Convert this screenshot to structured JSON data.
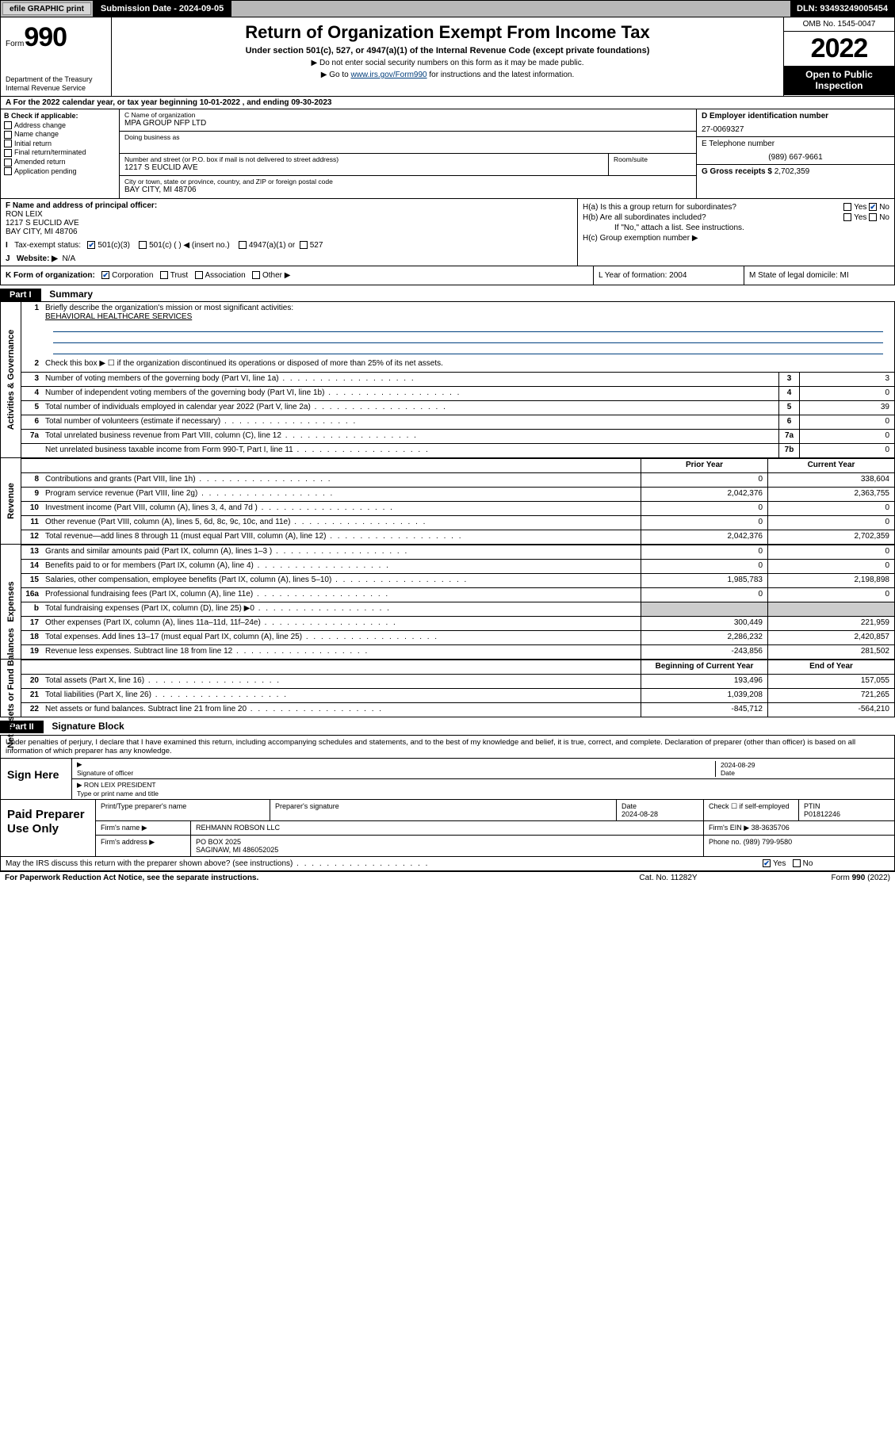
{
  "topbar": {
    "efile": "efile GRAPHIC print",
    "submission": "Submission Date - 2024-09-05",
    "dln": "DLN: 93493249005454"
  },
  "header": {
    "form_label": "Form",
    "form_number": "990",
    "dept": "Department of the Treasury\nInternal Revenue Service",
    "title": "Return of Organization Exempt From Income Tax",
    "sub1": "Under section 501(c), 527, or 4947(a)(1) of the Internal Revenue Code (except private foundations)",
    "sub2": "Do not enter social security numbers on this form as it may be made public.",
    "sub3_pre": "Go to ",
    "sub3_link": "www.irs.gov/Form990",
    "sub3_post": " for instructions and the latest information.",
    "omb": "OMB No. 1545-0047",
    "year": "2022",
    "open": "Open to Public Inspection"
  },
  "rowA": "A For the 2022 calendar year, or tax year beginning 10-01-2022    , and ending 09-30-2023",
  "checkboxes": {
    "title": "B Check if applicable:",
    "items": [
      "Address change",
      "Name change",
      "Initial return",
      "Final return/terminated",
      "Amended return",
      "Application pending"
    ]
  },
  "ident": {
    "c_label": "C Name of organization",
    "c_val": "MPA GROUP NFP LTD",
    "dba_label": "Doing business as",
    "dba_val": "",
    "addr_label": "Number and street (or P.O. box if mail is not delivered to street address)",
    "addr_val": "1217 S EUCLID AVE",
    "room_label": "Room/suite",
    "city_label": "City or town, state or province, country, and ZIP or foreign postal code",
    "city_val": "BAY CITY, MI  48706",
    "d_label": "D Employer identification number",
    "d_val": "27-0069327",
    "e_label": "E Telephone number",
    "e_val": "(989) 667-9661",
    "g_label": "G Gross receipts $",
    "g_val": "2,702,359"
  },
  "fh": {
    "f_label": "F  Name and address of principal officer:",
    "f_name": "RON LEIX",
    "f_addr1": "1217 S EUCLID AVE",
    "f_addr2": "BAY CITY, MI  48706",
    "i_label": "Tax-exempt status:",
    "i_501c3": "501(c)(3)",
    "i_501c": "501(c) (  ) ◀ (insert no.)",
    "i_4947": "4947(a)(1) or",
    "i_527": "527",
    "j_label": "Website: ▶",
    "j_val": "N/A",
    "ha": "H(a)  Is this a group return for subordinates?",
    "hb": "H(b)  Are all subordinates included?",
    "hb_note": "If \"No,\" attach a list. See instructions.",
    "hc": "H(c)  Group exemption number ▶"
  },
  "klm": {
    "k": "K Form of organization:",
    "k_corp": "Corporation",
    "k_trust": "Trust",
    "k_assoc": "Association",
    "k_other": "Other ▶",
    "l": "L Year of formation: 2004",
    "m": "M State of legal domicile: MI"
  },
  "part1": {
    "hdr": "Part I",
    "title": "Summary",
    "l1": "Briefly describe the organization's mission or most significant activities:",
    "l1_val": "BEHAVIORAL HEALTHCARE SERVICES",
    "l2": "Check this box ▶ ☐  if the organization discontinued its operations or disposed of more than 25% of its net assets.",
    "rows_top": [
      {
        "n": "3",
        "d": "Number of voting members of the governing body (Part VI, line 1a)",
        "box": "3",
        "val": "3"
      },
      {
        "n": "4",
        "d": "Number of independent voting members of the governing body (Part VI, line 1b)",
        "box": "4",
        "val": "0"
      },
      {
        "n": "5",
        "d": "Total number of individuals employed in calendar year 2022 (Part V, line 2a)",
        "box": "5",
        "val": "39"
      },
      {
        "n": "6",
        "d": "Total number of volunteers (estimate if necessary)",
        "box": "6",
        "val": "0"
      },
      {
        "n": "7a",
        "d": "Total unrelated business revenue from Part VIII, column (C), line 12",
        "box": "7a",
        "val": "0"
      },
      {
        "n": "",
        "d": "Net unrelated business taxable income from Form 990-T, Part I, line 11",
        "box": "7b",
        "val": "0"
      }
    ],
    "col_headers": {
      "prior": "Prior Year",
      "current": "Current Year"
    },
    "revenue": [
      {
        "n": "8",
        "d": "Contributions and grants (Part VIII, line 1h)",
        "p": "0",
        "c": "338,604"
      },
      {
        "n": "9",
        "d": "Program service revenue (Part VIII, line 2g)",
        "p": "2,042,376",
        "c": "2,363,755"
      },
      {
        "n": "10",
        "d": "Investment income (Part VIII, column (A), lines 3, 4, and 7d )",
        "p": "0",
        "c": "0"
      },
      {
        "n": "11",
        "d": "Other revenue (Part VIII, column (A), lines 5, 6d, 8c, 9c, 10c, and 11e)",
        "p": "0",
        "c": "0"
      },
      {
        "n": "12",
        "d": "Total revenue—add lines 8 through 11 (must equal Part VIII, column (A), line 12)",
        "p": "2,042,376",
        "c": "2,702,359"
      }
    ],
    "expenses": [
      {
        "n": "13",
        "d": "Grants and similar amounts paid (Part IX, column (A), lines 1–3 )",
        "p": "0",
        "c": "0"
      },
      {
        "n": "14",
        "d": "Benefits paid to or for members (Part IX, column (A), line 4)",
        "p": "0",
        "c": "0"
      },
      {
        "n": "15",
        "d": "Salaries, other compensation, employee benefits (Part IX, column (A), lines 5–10)",
        "p": "1,985,783",
        "c": "2,198,898"
      },
      {
        "n": "16a",
        "d": "Professional fundraising fees (Part IX, column (A), line 11e)",
        "p": "0",
        "c": "0"
      },
      {
        "n": "b",
        "d": "Total fundraising expenses (Part IX, column (D), line 25) ▶0",
        "p": "",
        "c": "",
        "grey": true
      },
      {
        "n": "17",
        "d": "Other expenses (Part IX, column (A), lines 11a–11d, 11f–24e)",
        "p": "300,449",
        "c": "221,959"
      },
      {
        "n": "18",
        "d": "Total expenses. Add lines 13–17 (must equal Part IX, column (A), line 25)",
        "p": "2,286,232",
        "c": "2,420,857"
      },
      {
        "n": "19",
        "d": "Revenue less expenses. Subtract line 18 from line 12",
        "p": "-243,856",
        "c": "281,502"
      }
    ],
    "na_headers": {
      "begin": "Beginning of Current Year",
      "end": "End of Year"
    },
    "netassets": [
      {
        "n": "20",
        "d": "Total assets (Part X, line 16)",
        "p": "193,496",
        "c": "157,055"
      },
      {
        "n": "21",
        "d": "Total liabilities (Part X, line 26)",
        "p": "1,039,208",
        "c": "721,265"
      },
      {
        "n": "22",
        "d": "Net assets or fund balances. Subtract line 21 from line 20",
        "p": "-845,712",
        "c": "-564,210"
      }
    ],
    "side_ag": "Activities & Governance",
    "side_rev": "Revenue",
    "side_exp": "Expenses",
    "side_na": "Net Assets or Fund Balances"
  },
  "part2": {
    "hdr": "Part II",
    "title": "Signature Block",
    "pre": "Under penalties of perjury, I declare that I have examined this return, including accompanying schedules and statements, and to the best of my knowledge and belief, it is true, correct, and complete. Declaration of preparer (other than officer) is based on all information of which preparer has any knowledge.",
    "sign_here": "Sign Here",
    "sig_officer": "Signature of officer",
    "sig_date": "2024-08-29",
    "sig_date_lbl": "Date",
    "sig_name": "RON LEIX PRESIDENT",
    "sig_name_lbl": "Type or print name and title",
    "paid": "Paid Preparer Use Only",
    "p_name_lbl": "Print/Type preparer's name",
    "p_sig_lbl": "Preparer's signature",
    "p_date_lbl": "Date",
    "p_date": "2024-08-28",
    "p_check_lbl": "Check ☐ if self-employed",
    "p_ptin_lbl": "PTIN",
    "p_ptin": "P01812246",
    "firm_name_lbl": "Firm's name    ▶",
    "firm_name": "REHMANN ROBSON LLC",
    "firm_ein_lbl": "Firm's EIN ▶",
    "firm_ein": "38-3635706",
    "firm_addr_lbl": "Firm's address ▶",
    "firm_addr1": "PO BOX 2025",
    "firm_addr2": "SAGINAW, MI  486052025",
    "firm_phone_lbl": "Phone no.",
    "firm_phone": "(989) 799-9580",
    "may": "May the IRS discuss this return with the preparer shown above? (see instructions)",
    "may_yes": "Yes",
    "may_no": "No"
  },
  "footer": {
    "l": "For Paperwork Reduction Act Notice, see the separate instructions.",
    "m": "Cat. No. 11282Y",
    "r": "Form 990 (2022)"
  }
}
